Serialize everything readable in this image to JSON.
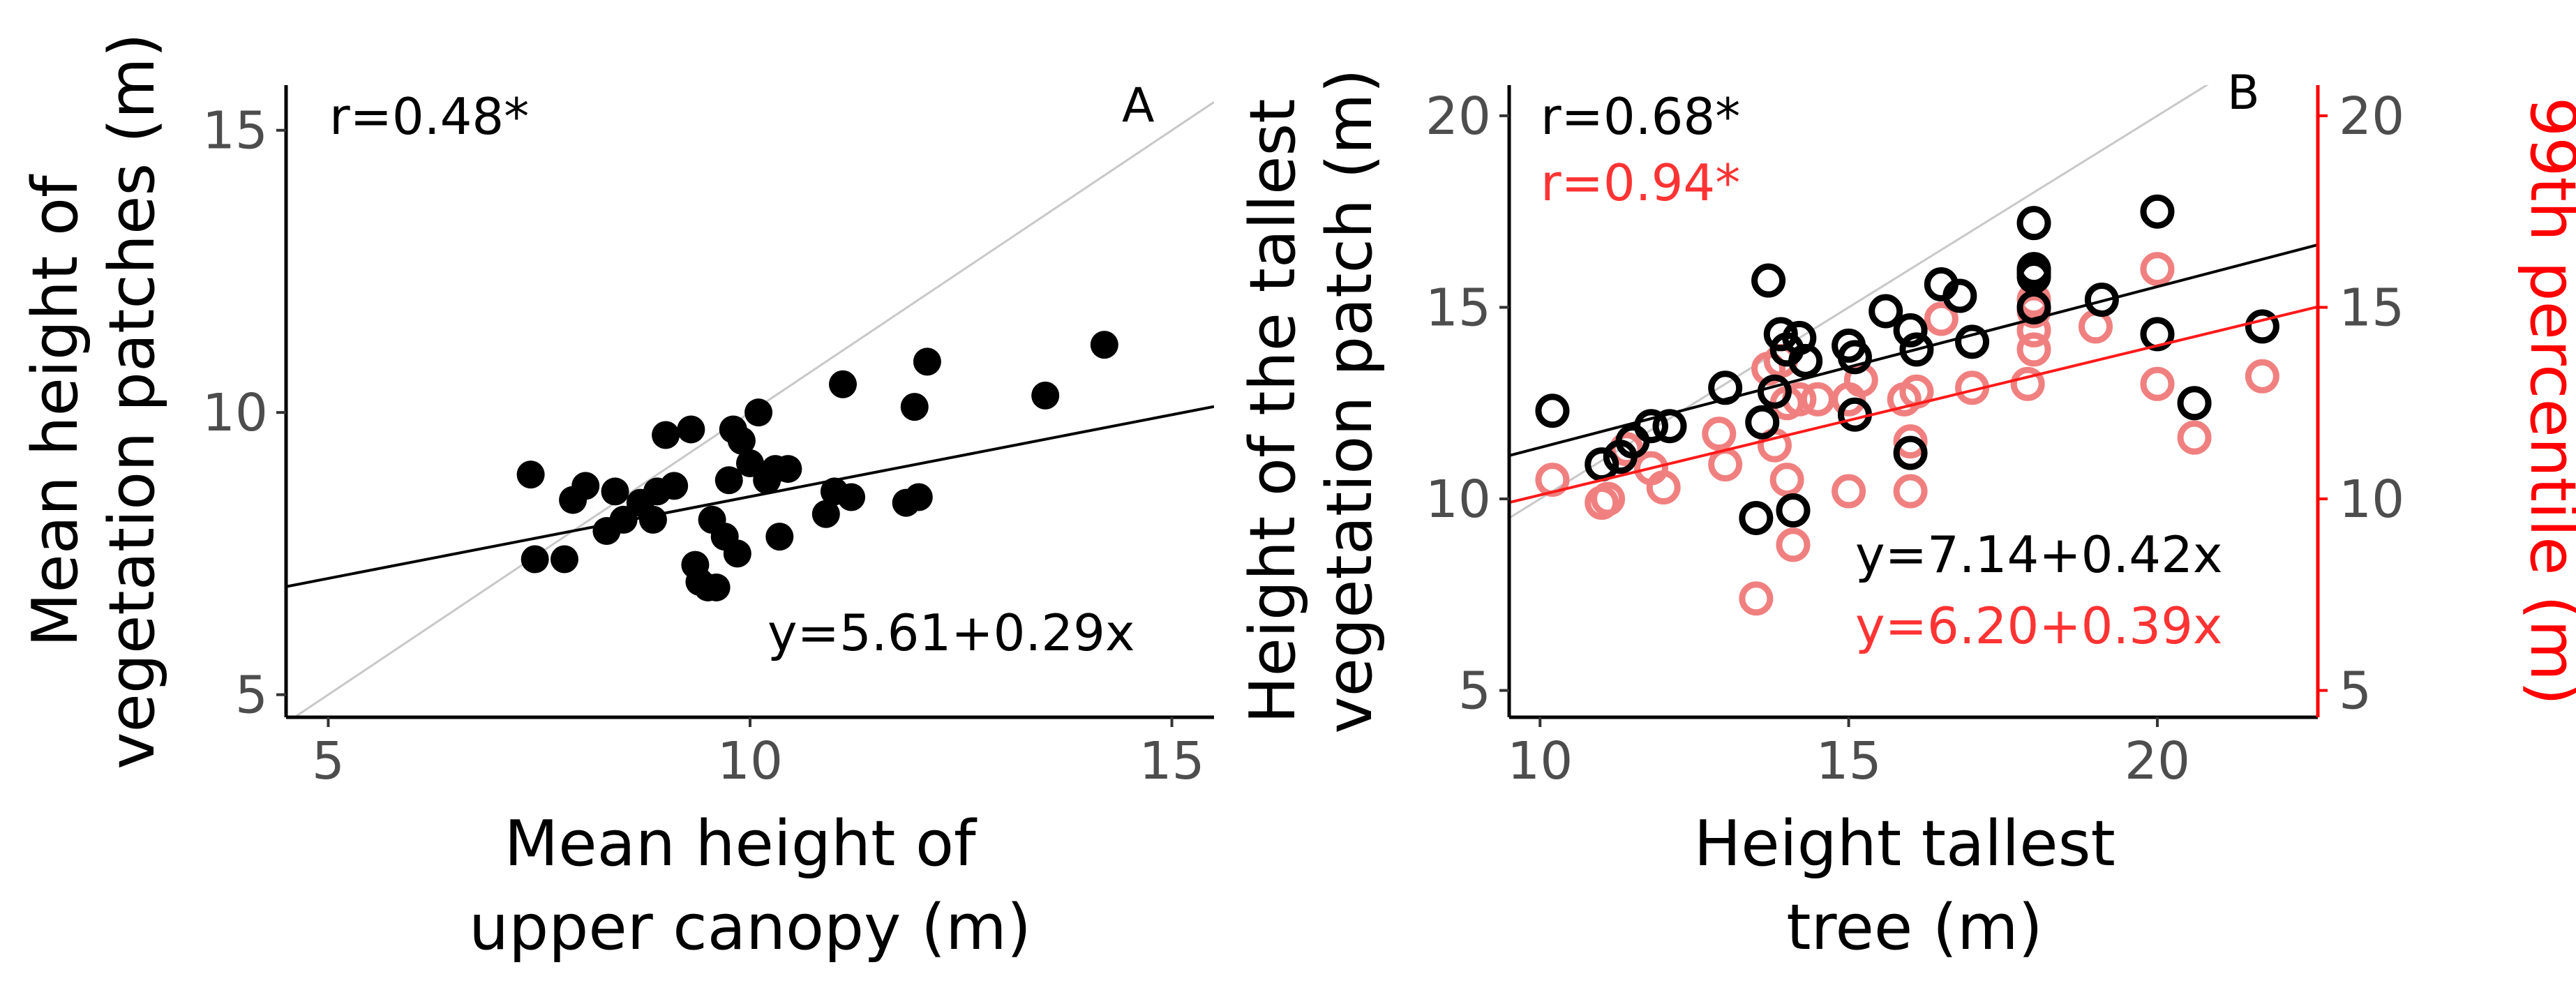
{
  "chart_data": [
    {
      "type": "scatter",
      "panel_label": "A",
      "xlabel_lines": [
        "Mean height of",
        "upper canopy (m)"
      ],
      "ylabel_lines": [
        "Mean height of",
        "vegetation patches (m)"
      ],
      "xlim": [
        4.5,
        15.5
      ],
      "ylim": [
        4.6,
        15.8
      ],
      "xticks": [
        5,
        10,
        15
      ],
      "yticks": [
        5,
        10,
        15
      ],
      "grid": false,
      "identity_line": true,
      "annotations": {
        "r": "r=0.48*",
        "equation": "y=5.61+0.29x"
      },
      "fit": {
        "intercept": 5.61,
        "slope": 0.29,
        "color": "#000000"
      },
      "series": [
        {
          "marker": "filled-circle",
          "color": "#000000",
          "x": [
            7.4,
            7.45,
            7.8,
            7.9,
            8.05,
            8.3,
            8.4,
            8.5,
            8.7,
            8.85,
            8.9,
            9.0,
            9.1,
            9.3,
            9.35,
            9.4,
            9.5,
            9.55,
            9.6,
            9.7,
            9.75,
            9.8,
            9.85,
            9.9,
            10.0,
            10.1,
            10.2,
            10.3,
            10.35,
            10.45,
            10.9,
            11.0,
            11.1,
            11.2,
            11.85,
            11.95,
            12.0,
            12.1,
            13.5,
            14.2
          ],
          "y": [
            8.9,
            7.4,
            7.4,
            8.45,
            8.7,
            7.9,
            8.6,
            8.1,
            8.4,
            8.1,
            8.6,
            9.6,
            8.7,
            9.7,
            7.3,
            7.0,
            6.9,
            8.1,
            6.9,
            7.8,
            8.8,
            9.7,
            7.5,
            9.5,
            9.1,
            10.0,
            8.8,
            9.0,
            7.8,
            9.0,
            8.2,
            8.6,
            10.5,
            8.5,
            8.4,
            10.1,
            8.5,
            10.9,
            10.3,
            11.2
          ]
        }
      ]
    },
    {
      "type": "scatter",
      "panel_label": "B",
      "xlabel_lines": [
        "Height tallest",
        "tree (m)"
      ],
      "ylabel_lines": [
        "Height of the tallest",
        "vegetation patch (m)"
      ],
      "y2label": "99th percentile (m)",
      "xlim": [
        9.5,
        22.6
      ],
      "ylim": [
        4.3,
        20.8
      ],
      "y2lim": [
        4.3,
        20.8
      ],
      "xticks": [
        10,
        15,
        20
      ],
      "yticks": [
        5,
        10,
        15,
        20
      ],
      "y2ticks": [
        5,
        10,
        15,
        20
      ],
      "grid": false,
      "identity_line": true,
      "annotations": {
        "r_black": "r=0.68*",
        "r_red": "r=0.94*",
        "equation_black": "y=7.14+0.42x",
        "equation_red": "y=6.20+0.39x"
      },
      "fits": [
        {
          "intercept": 7.14,
          "slope": 0.42,
          "color": "#000000"
        },
        {
          "intercept": 6.2,
          "slope": 0.39,
          "color": "#ff1a1a"
        }
      ],
      "series": [
        {
          "axis": "left",
          "marker": "open-circle",
          "color": "#000000",
          "x": [
            10.2,
            11.0,
            11.3,
            11.5,
            11.8,
            12.1,
            13.0,
            13.5,
            13.6,
            13.7,
            13.8,
            13.9,
            14.0,
            14.1,
            14.2,
            14.3,
            15.0,
            15.1,
            15.1,
            15.6,
            16.0,
            16.0,
            16.1,
            16.5,
            16.8,
            17.0,
            18.0,
            18.0,
            18.0,
            18.0,
            18.0,
            19.1,
            20.0,
            20.0,
            20.6,
            21.7
          ],
          "y": [
            12.3,
            10.9,
            11.1,
            11.5,
            11.9,
            11.9,
            12.9,
            9.5,
            12.0,
            15.7,
            12.8,
            14.3,
            13.9,
            9.7,
            14.2,
            13.6,
            14.0,
            13.7,
            12.2,
            14.9,
            14.4,
            11.2,
            13.9,
            15.6,
            15.3,
            14.1,
            17.2,
            16.0,
            15.8,
            15.0,
            15.9,
            15.2,
            17.5,
            14.3,
            12.5,
            14.5
          ]
        },
        {
          "axis": "right",
          "marker": "open-circle",
          "color": "#f08080",
          "x": [
            10.2,
            11.0,
            11.1,
            11.4,
            11.8,
            12.0,
            12.9,
            13.0,
            13.5,
            13.7,
            13.8,
            13.9,
            14.0,
            14.0,
            14.1,
            14.2,
            14.5,
            15.0,
            15.0,
            15.2,
            15.9,
            16.0,
            16.0,
            16.1,
            16.5,
            17.0,
            17.9,
            18.0,
            18.0,
            18.0,
            18.0,
            19.0,
            20.0,
            20.0,
            20.6,
            21.7
          ],
          "y": [
            10.5,
            9.9,
            10.0,
            11.3,
            10.8,
            10.3,
            11.7,
            10.9,
            7.4,
            13.4,
            11.4,
            13.6,
            12.5,
            10.5,
            8.8,
            12.6,
            12.6,
            12.6,
            10.2,
            13.1,
            12.6,
            10.2,
            11.5,
            12.8,
            14.7,
            12.9,
            13.0,
            13.9,
            14.4,
            15.2,
            14.9,
            14.5,
            16.0,
            13.0,
            11.6,
            13.2
          ]
        }
      ]
    }
  ]
}
